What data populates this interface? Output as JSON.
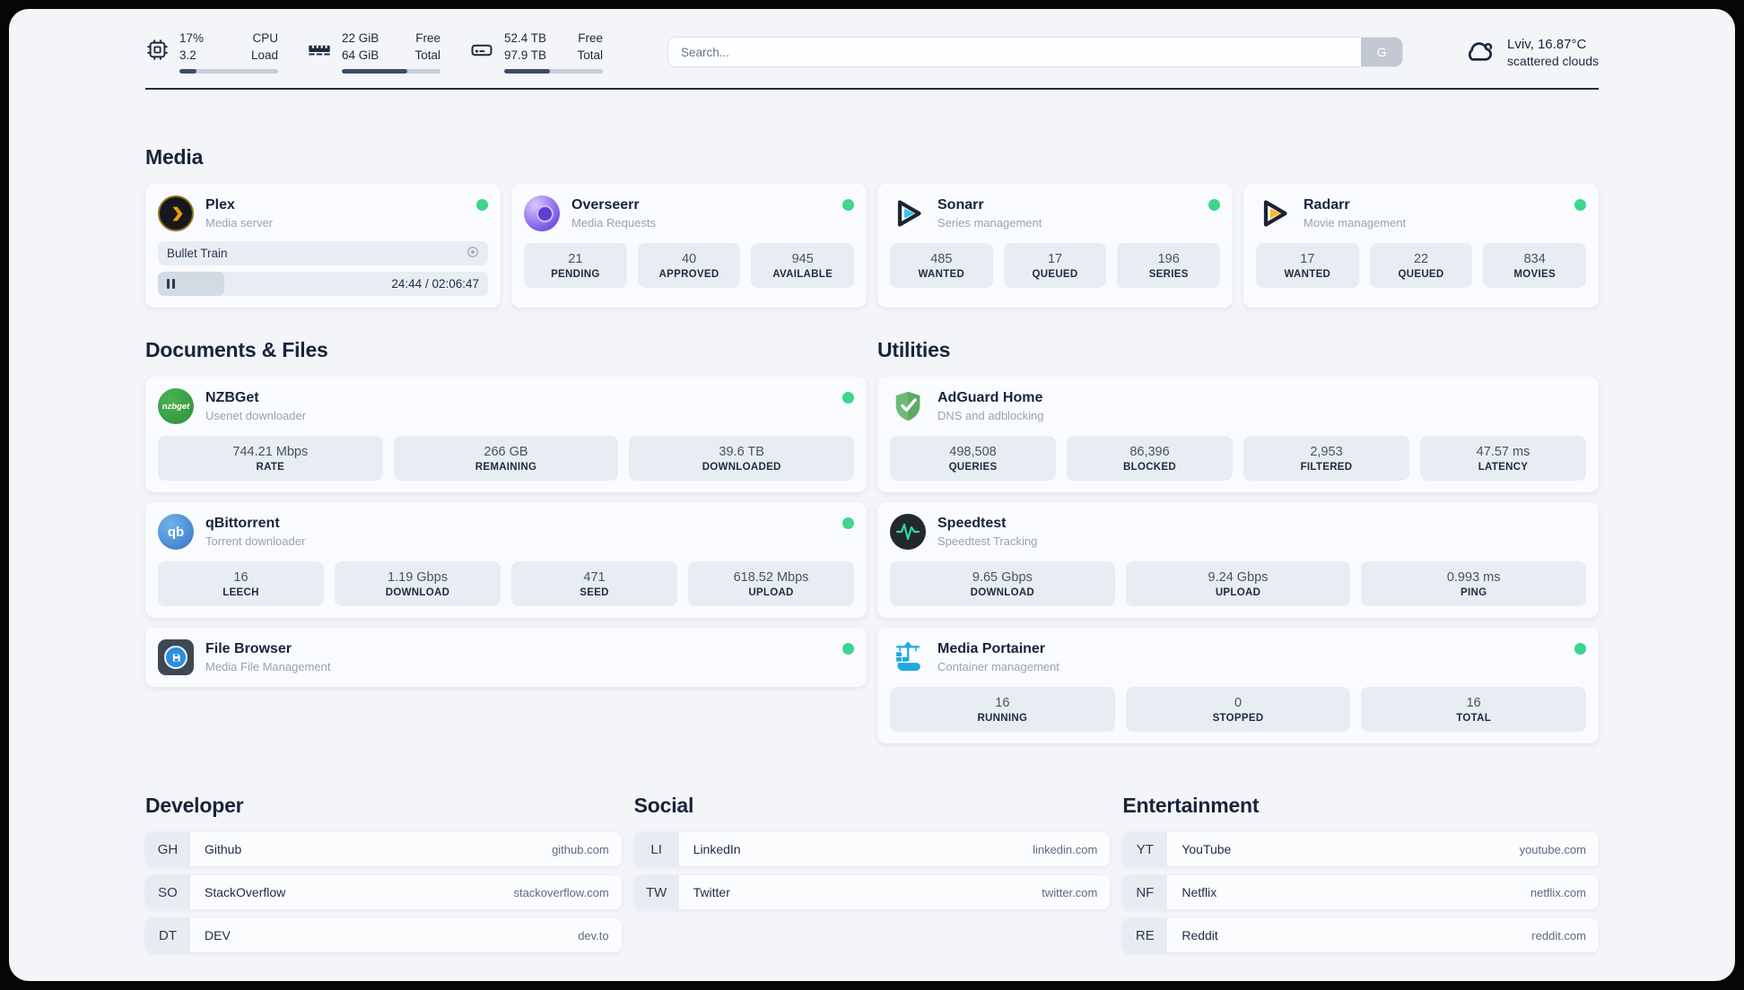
{
  "topbar": {
    "cpu": {
      "val1": "17%",
      "val2": "3.2",
      "label1": "CPU",
      "label2": "Load",
      "progress": 17
    },
    "ram": {
      "val1": "22 GiB",
      "val2": "64 GiB",
      "label1": "Free",
      "label2": "Total",
      "progress": 66
    },
    "disk": {
      "val1": "52.4 TB",
      "val2": "97.9 TB",
      "label1": "Free",
      "label2": "Total",
      "progress": 46
    },
    "search": {
      "placeholder": "Search...",
      "button_label": "G"
    },
    "weather": {
      "location": "Lviv, 16.87°C",
      "condition": "scattered clouds"
    }
  },
  "media": {
    "header": "Media",
    "plex": {
      "name": "Plex",
      "desc": "Media server",
      "now_playing": "Bullet Train",
      "time": "24:44 / 02:06:47",
      "progress": 20
    },
    "overseerr": {
      "name": "Overseerr",
      "desc": "Media Requests",
      "stats": [
        {
          "value": "21",
          "label": "PENDING"
        },
        {
          "value": "40",
          "label": "APPROVED"
        },
        {
          "value": "945",
          "label": "AVAILABLE"
        }
      ]
    },
    "sonarr": {
      "name": "Sonarr",
      "desc": "Series management",
      "stats": [
        {
          "value": "485",
          "label": "WANTED"
        },
        {
          "value": "17",
          "label": "QUEUED"
        },
        {
          "value": "196",
          "label": "SERIES"
        }
      ]
    },
    "radarr": {
      "name": "Radarr",
      "desc": "Movie management",
      "stats": [
        {
          "value": "17",
          "label": "WANTED"
        },
        {
          "value": "22",
          "label": "QUEUED"
        },
        {
          "value": "834",
          "label": "MOVIES"
        }
      ]
    }
  },
  "documents": {
    "header": "Documents & Files",
    "nzbget": {
      "name": "NZBGet",
      "desc": "Usenet downloader",
      "icon_text": "nzbget",
      "stats": [
        {
          "value": "744.21 Mbps",
          "label": "RATE"
        },
        {
          "value": "266 GB",
          "label": "REMAINING"
        },
        {
          "value": "39.6 TB",
          "label": "DOWNLOADED"
        }
      ]
    },
    "qbittorrent": {
      "name": "qBittorrent",
      "desc": "Torrent downloader",
      "icon_text": "qb",
      "stats": [
        {
          "value": "16",
          "label": "LEECH"
        },
        {
          "value": "1.19 Gbps",
          "label": "DOWNLOAD"
        },
        {
          "value": "471",
          "label": "SEED"
        },
        {
          "value": "618.52 Mbps",
          "label": "UPLOAD"
        }
      ]
    },
    "filebrowser": {
      "name": "File Browser",
      "desc": "Media File Management"
    }
  },
  "utilities": {
    "header": "Utilities",
    "adguard": {
      "name": "AdGuard Home",
      "desc": "DNS and adblocking",
      "stats": [
        {
          "value": "498,508",
          "label": "QUERIES"
        },
        {
          "value": "86,396",
          "label": "BLOCKED"
        },
        {
          "value": "2,953",
          "label": "FILTERED"
        },
        {
          "value": "47.57 ms",
          "label": "LATENCY"
        }
      ]
    },
    "speedtest": {
      "name": "Speedtest",
      "desc": "Speedtest Tracking",
      "stats": [
        {
          "value": "9.65 Gbps",
          "label": "DOWNLOAD"
        },
        {
          "value": "9.24 Gbps",
          "label": "UPLOAD"
        },
        {
          "value": "0.993 ms",
          "label": "PING"
        }
      ]
    },
    "portainer": {
      "name": "Media Portainer",
      "desc": "Container management",
      "stats": [
        {
          "value": "16",
          "label": "RUNNING"
        },
        {
          "value": "0",
          "label": "STOPPED"
        },
        {
          "value": "16",
          "label": "TOTAL"
        }
      ]
    }
  },
  "bookmarks": {
    "developer": {
      "header": "Developer",
      "items": [
        {
          "abbr": "GH",
          "name": "Github",
          "url": "github.com"
        },
        {
          "abbr": "SO",
          "name": "StackOverflow",
          "url": "stackoverflow.com"
        },
        {
          "abbr": "DT",
          "name": "DEV",
          "url": "dev.to"
        }
      ]
    },
    "social": {
      "header": "Social",
      "items": [
        {
          "abbr": "LI",
          "name": "LinkedIn",
          "url": "linkedin.com"
        },
        {
          "abbr": "TW",
          "name": "Twitter",
          "url": "twitter.com"
        }
      ]
    },
    "entertainment": {
      "header": "Entertainment",
      "items": [
        {
          "abbr": "YT",
          "name": "YouTube",
          "url": "youtube.com"
        },
        {
          "abbr": "NF",
          "name": "Netflix",
          "url": "netflix.com"
        },
        {
          "abbr": "RE",
          "name": "Reddit",
          "url": "reddit.com"
        }
      ]
    }
  },
  "colors": {
    "status_online": "#3dd68c"
  }
}
